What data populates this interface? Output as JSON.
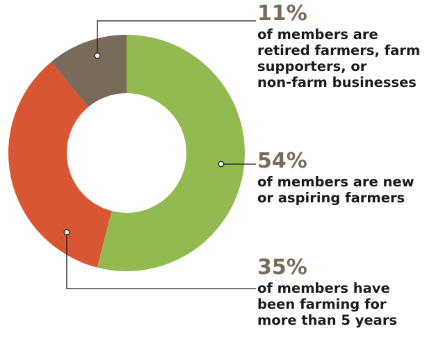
{
  "chart_data": {
    "type": "pie",
    "donut": true,
    "start_angle_deg": 0,
    "direction": "clockwise",
    "slices": [
      {
        "label": "54%",
        "value": 54,
        "color": "#93ba50",
        "description": "of members are new or aspiring farmers"
      },
      {
        "label": "35%",
        "value": 35,
        "color": "#d95632",
        "description": "of members have been farming for more than 5 years"
      },
      {
        "label": "11%",
        "value": 11,
        "color": "#786b5c",
        "description": "of members are retired farmers, farm supporters, or non-farm businesses"
      }
    ]
  },
  "callouts": [
    {
      "pct": "11%",
      "lines": [
        "of members are",
        "retired farmers, farm",
        "supporters, or",
        "non-farm businesses"
      ]
    },
    {
      "pct": "54%",
      "lines": [
        "of members are new",
        "or aspiring farmers"
      ]
    },
    {
      "pct": "35%",
      "lines": [
        "of members have",
        "been farming for",
        "more than 5 years"
      ]
    }
  ]
}
